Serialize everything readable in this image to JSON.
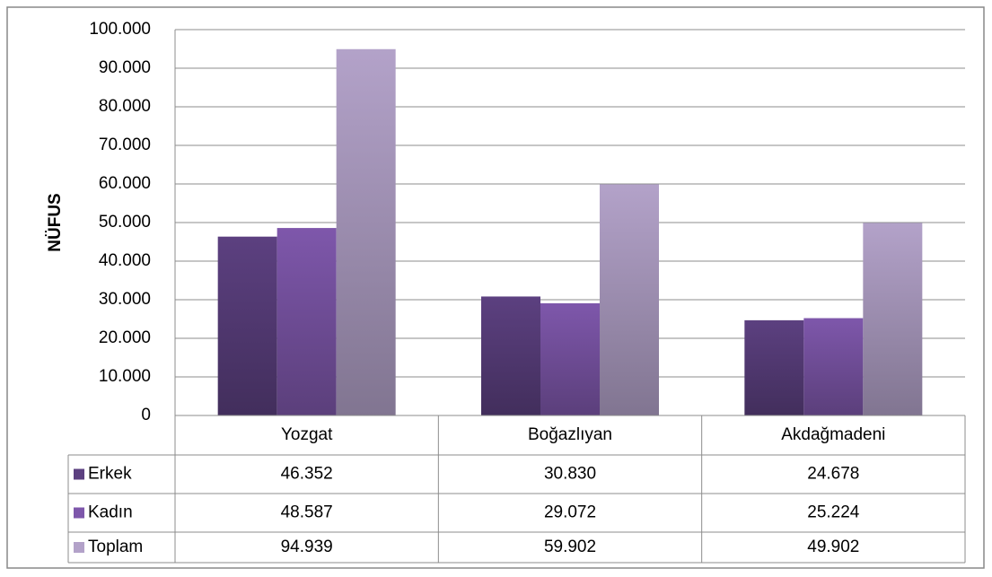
{
  "chart_data": {
    "type": "bar",
    "ylabel": "NÜFUS",
    "categories": [
      "Yozgat",
      "Boğazlıyan",
      "Akdağmadeni"
    ],
    "series": [
      {
        "name": "Erkek",
        "color": "#5c4080",
        "values": [
          46352,
          30830,
          24678
        ],
        "value_labels": [
          "46.352",
          "30.830",
          "24.678"
        ]
      },
      {
        "name": "Kadın",
        "color": "#7e57ab",
        "values": [
          48587,
          29072,
          25224
        ],
        "value_labels": [
          "48.587",
          "29.072",
          "25.224"
        ]
      },
      {
        "name": "Toplam",
        "color": "#b3a2c9",
        "values": [
          94939,
          59902,
          49902
        ],
        "value_labels": [
          "94.939",
          "59.902",
          "49.902"
        ]
      }
    ],
    "ylim": [
      0,
      100000
    ],
    "yticks": [
      0,
      {
        "value": 10000,
        "label": "10.000"
      },
      {
        "value": 20000,
        "label": "20.000"
      },
      {
        "value": 30000,
        "label": "30.000"
      },
      {
        "value": 40000,
        "label": "40.000"
      },
      {
        "value": 50000,
        "label": "50.000"
      },
      {
        "value": 60000,
        "label": "60.000"
      },
      {
        "value": 70000,
        "label": "70.000"
      },
      {
        "value": 80000,
        "label": "80.000"
      },
      {
        "value": 90000,
        "label": "90.000"
      },
      {
        "value": 100000,
        "label": "100.000"
      }
    ],
    "grid": true
  }
}
